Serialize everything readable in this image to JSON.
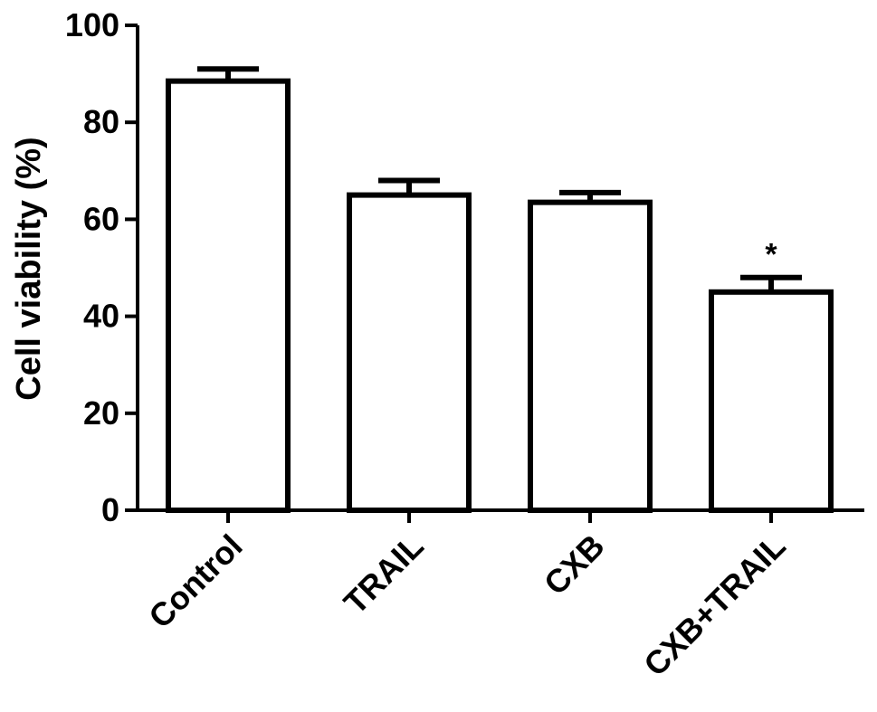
{
  "chart_data": {
    "type": "bar",
    "title": "",
    "xlabel": "",
    "ylabel": "Cell viability (%)",
    "ylim": [
      0,
      100
    ],
    "yticks": [
      0,
      20,
      40,
      60,
      80,
      100
    ],
    "categories": [
      "Control",
      "TRAIL",
      "CXB",
      "CXB+TRAIL"
    ],
    "values": [
      88.5,
      65,
      63.5,
      45
    ],
    "errors": [
      2.5,
      3,
      2,
      3
    ],
    "annotations": [
      "",
      "",
      "",
      "*"
    ],
    "grid": false,
    "bar_fill": "#ffffff",
    "bar_stroke": "#000000"
  }
}
